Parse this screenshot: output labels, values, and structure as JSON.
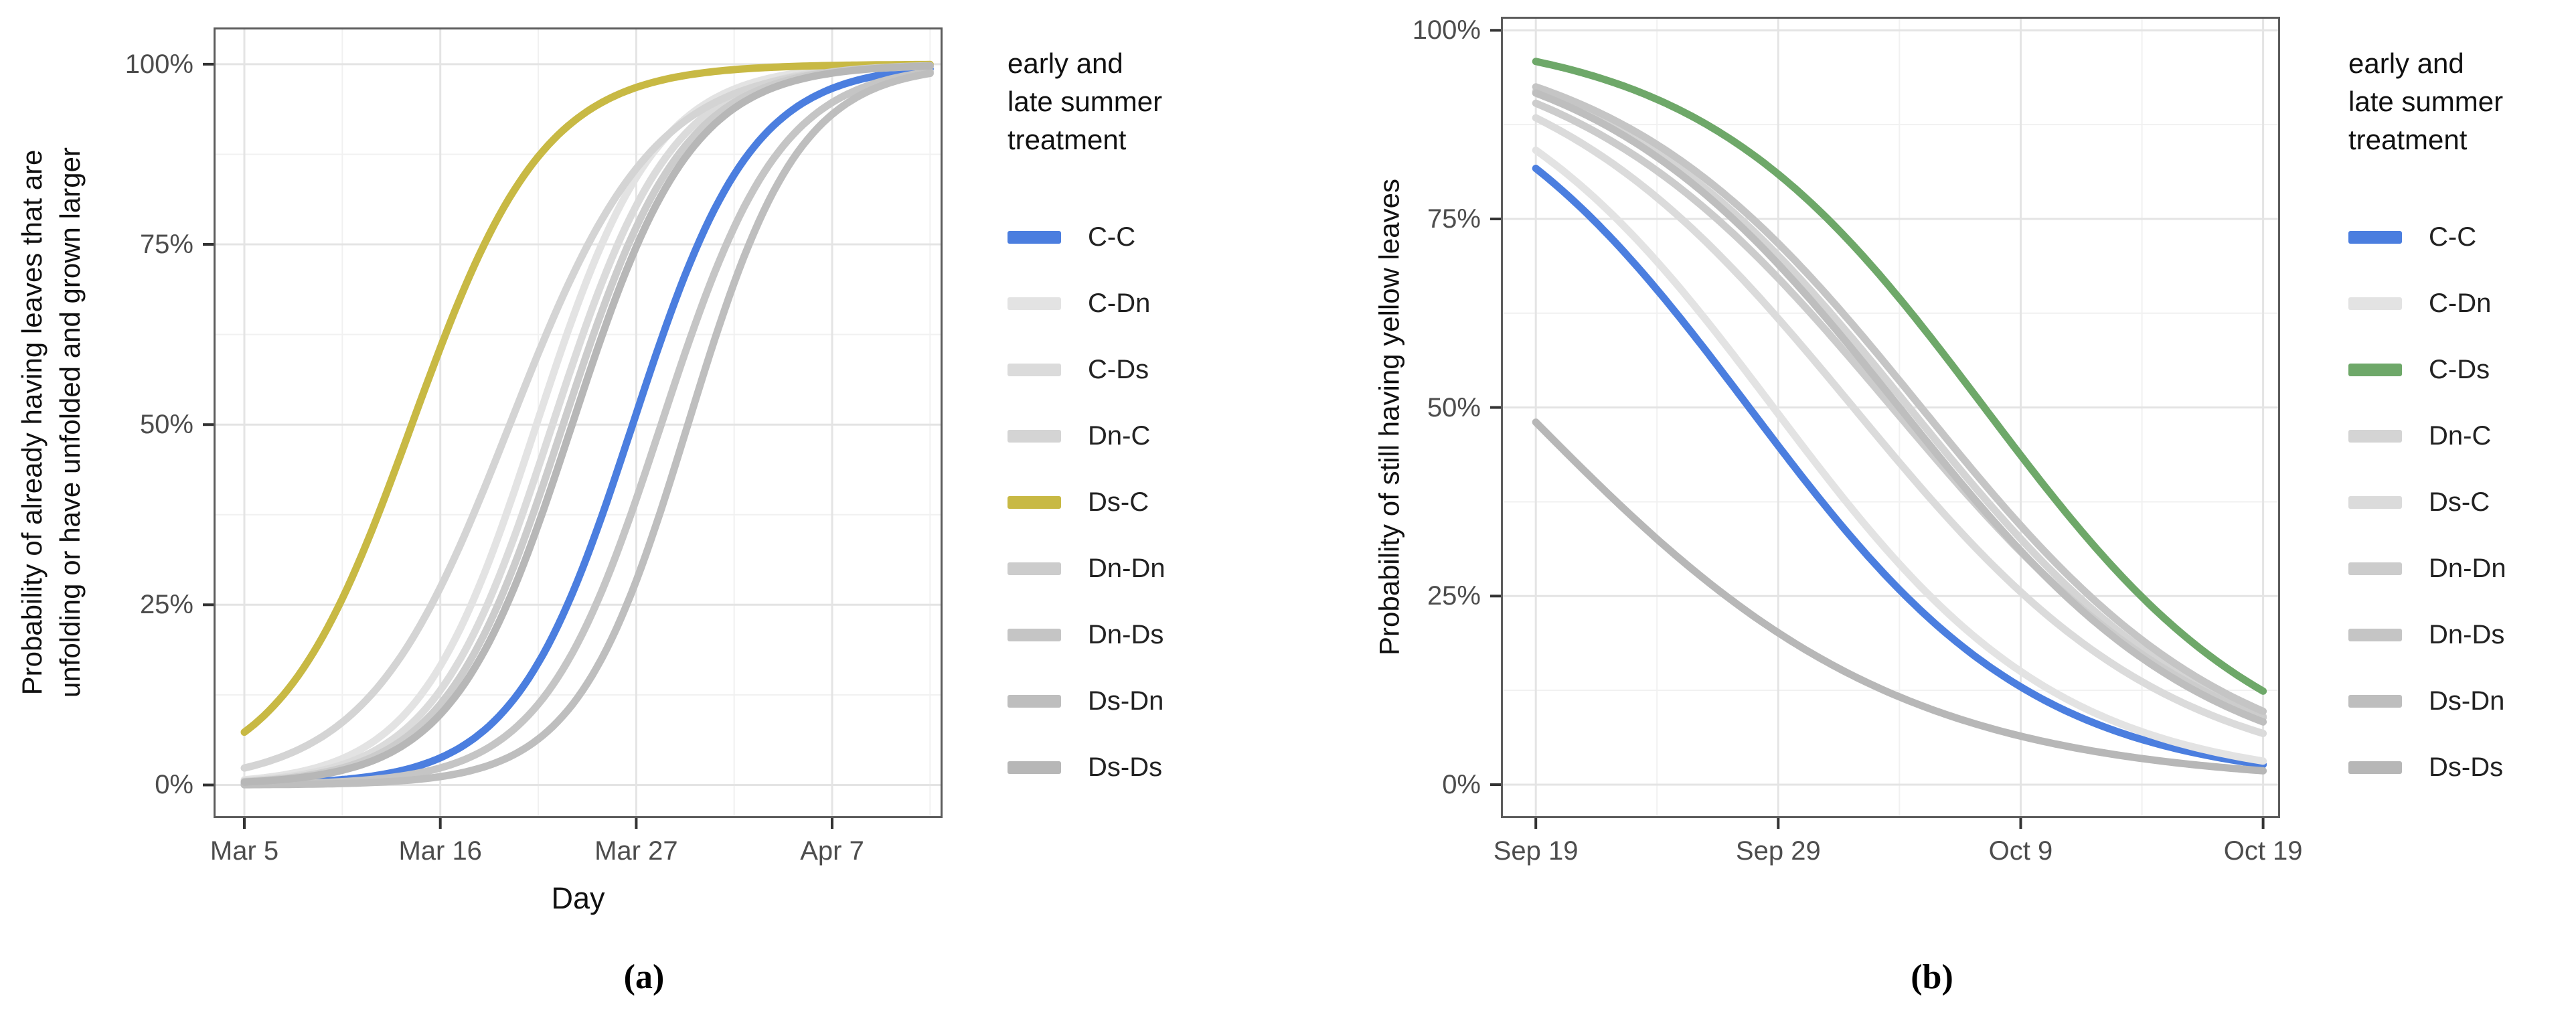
{
  "figure": {
    "background": "#ffffff",
    "accent_colors": {
      "blue": "#4B7EDF",
      "yellow": "#C8B944",
      "green": "#6EA869"
    }
  },
  "legend_title_lines": [
    "early and",
    "late summer",
    "treatment"
  ],
  "chart_data": [
    {
      "id": "a",
      "type": "line",
      "caption": "(a)",
      "xlabel": "Day",
      "ylabel_lines": [
        "Probability of already having leaves that are",
        "unfolding or have unfolded and grown larger"
      ],
      "direction": "increasing",
      "model": "logistic",
      "day0_date": "Mar 5",
      "x_ticks": [
        {
          "label": "Mar 5",
          "day": 0
        },
        {
          "label": "Mar 16",
          "day": 11
        },
        {
          "label": "Mar 27",
          "day": 22
        },
        {
          "label": "Apr 7",
          "day": 33
        }
      ],
      "x_minor_days": [
        5.5,
        16.5,
        27.5,
        38.5
      ],
      "y_ticks": [
        {
          "label": "0%",
          "value": 0
        },
        {
          "label": "25%",
          "value": 25
        },
        {
          "label": "50%",
          "value": 50
        },
        {
          "label": "75%",
          "value": 75
        },
        {
          "label": "100%",
          "value": 100
        }
      ],
      "y_minor_values": [
        12.5,
        37.5,
        62.5,
        87.5
      ],
      "x_domain_days": [
        -1.73,
        39.2
      ],
      "y_domain_pct": [
        -4.6,
        105.1
      ],
      "curve_day_range": [
        0,
        38.5
      ],
      "grid": true,
      "legend_position": "right",
      "series": [
        {
          "name": "C-C",
          "color": "#4B7EDF",
          "highlight": true,
          "k": 0.3,
          "midpoint_day": 21.8,
          "midpoint_date": "Mar 27",
          "start_pct": 0.1,
          "end_pct": 99.3
        },
        {
          "name": "C-Dn",
          "color": "#E3E3E3",
          "highlight": false,
          "k": 0.3,
          "midpoint_day": 16.4,
          "midpoint_date": "Mar 21",
          "start_pct": 0.7,
          "end_pct": 99.9
        },
        {
          "name": "C-Ds",
          "color": "#DBDBDB",
          "highlight": false,
          "k": 0.3,
          "midpoint_day": 17.3,
          "midpoint_date": "Mar 22",
          "start_pct": 0.6,
          "end_pct": 99.8
        },
        {
          "name": "Dn-C",
          "color": "#D4D4D4",
          "highlight": false,
          "k": 0.25,
          "midpoint_day": 14.9,
          "midpoint_date": "Mar 20",
          "start_pct": 2.4,
          "end_pct": 99.7
        },
        {
          "name": "Ds-C",
          "color": "#C8B944",
          "highlight": true,
          "k": 0.27,
          "midpoint_day": 9.4,
          "midpoint_date": "Mar 14",
          "start_pct": 7.3,
          "end_pct": 100.0
        },
        {
          "name": "Dn-Dn",
          "color": "#CCCCCC",
          "highlight": false,
          "k": 0.3,
          "midpoint_day": 17.9,
          "midpoint_date": "Mar 23",
          "start_pct": 0.5,
          "end_pct": 99.8
        },
        {
          "name": "Dn-Ds",
          "color": "#C5C5C5",
          "highlight": false,
          "k": 0.3,
          "midpoint_day": 23.4,
          "midpoint_date": "Mar 28",
          "start_pct": 0.1,
          "end_pct": 98.9
        },
        {
          "name": "Ds-Dn",
          "color": "#BEBEBE",
          "highlight": false,
          "k": 0.32,
          "midpoint_day": 24.9,
          "midpoint_date": "Mar 30",
          "start_pct": 0.03,
          "end_pct": 98.7
        },
        {
          "name": "Ds-Ds",
          "color": "#B7B7B7",
          "highlight": false,
          "k": 0.3,
          "midpoint_day": 18.4,
          "midpoint_date": "Mar 23",
          "start_pct": 0.4,
          "end_pct": 99.8
        }
      ]
    },
    {
      "id": "b",
      "type": "line",
      "caption": "(b)",
      "xlabel": null,
      "ylabel_lines": [
        "Probability of still having yellow leaves"
      ],
      "direction": "decreasing",
      "model": "logistic",
      "day0_date": "Sep 19",
      "x_ticks": [
        {
          "label": "Sep 19",
          "day": 0
        },
        {
          "label": "Sep 29",
          "day": 10
        },
        {
          "label": "Oct 9",
          "day": 20
        },
        {
          "label": "Oct 19",
          "day": 30
        }
      ],
      "x_minor_days": [
        5,
        15,
        25
      ],
      "y_ticks": [
        {
          "label": "0%",
          "value": 0
        },
        {
          "label": "25%",
          "value": 25
        },
        {
          "label": "50%",
          "value": 50
        },
        {
          "label": "75%",
          "value": 75
        },
        {
          "label": "100%",
          "value": 100
        }
      ],
      "y_minor_values": [
        12.5,
        37.5,
        62.5,
        87.5
      ],
      "x_domain_days": [
        -1.44,
        30.7
      ],
      "y_domain_pct": [
        -4.44,
        101.8
      ],
      "curve_day_range": [
        0,
        30
      ],
      "grid": true,
      "legend_position": "right",
      "series": [
        {
          "name": "C-C",
          "color": "#4B7EDF",
          "highlight": true,
          "k": 0.17,
          "midpoint_day": 8.8,
          "midpoint_date": "Sep 28",
          "start_pct": 81.7,
          "end_pct": 2.7
        },
        {
          "name": "C-Dn",
          "color": "#E3E3E3",
          "highlight": false,
          "k": 0.17,
          "midpoint_day": 9.8,
          "midpoint_date": "Sep 29",
          "start_pct": 84.1,
          "end_pct": 3.2
        },
        {
          "name": "C-Ds",
          "color": "#6EA869",
          "highlight": true,
          "k": 0.17,
          "midpoint_day": 18.5,
          "midpoint_date": "Oct 7",
          "start_pct": 95.9,
          "end_pct": 12.4
        },
        {
          "name": "Dn-C",
          "color": "#D4D4D4",
          "highlight": false,
          "k": 0.158,
          "midpoint_day": 15.4,
          "midpoint_date": "Oct 4",
          "start_pct": 91.9,
          "end_pct": 9.1
        },
        {
          "name": "Ds-C",
          "color": "#DBDBDB",
          "highlight": false,
          "k": 0.155,
          "midpoint_day": 13.1,
          "midpoint_date": "Oct 2",
          "start_pct": 88.4,
          "end_pct": 6.9
        },
        {
          "name": "Dn-Dn",
          "color": "#CCCCCC",
          "highlight": false,
          "k": 0.152,
          "midpoint_day": 14.7,
          "midpoint_date": "Oct 4",
          "start_pct": 90.3,
          "end_pct": 8.8
        },
        {
          "name": "Dn-Ds",
          "color": "#C5C5C5",
          "highlight": false,
          "k": 0.158,
          "midpoint_day": 15.9,
          "midpoint_date": "Oct 5",
          "start_pct": 92.5,
          "end_pct": 9.9
        },
        {
          "name": "Ds-Dn",
          "color": "#BEBEBE",
          "highlight": false,
          "k": 0.16,
          "midpoint_day": 15.0,
          "midpoint_date": "Oct 4",
          "start_pct": 91.7,
          "end_pct": 8.3
        },
        {
          "name": "Ds-Ds",
          "color": "#B7B7B7",
          "highlight": false,
          "k": 0.13,
          "midpoint_day": -0.6,
          "midpoint_date": "Sep 18",
          "start_pct": 48.1,
          "end_pct": 1.9
        }
      ]
    }
  ]
}
